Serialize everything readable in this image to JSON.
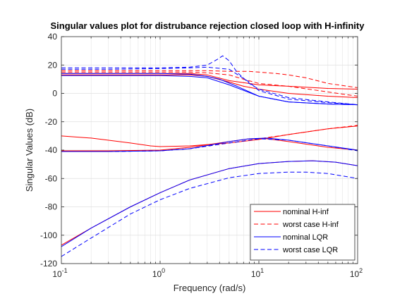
{
  "chart_data": {
    "type": "line",
    "title": "Singular values plot for distrubance rejection closed loop with H-infinity",
    "xlabel": "Frequency (rad/s)",
    "ylabel": "Singular Values (dB)",
    "xscale": "log",
    "xlim": [
      0.1,
      100
    ],
    "ylim": [
      -120,
      40
    ],
    "xticks": [
      {
        "value": 0.1,
        "base": "10",
        "exp": "-1"
      },
      {
        "value": 1,
        "base": "10",
        "exp": "0"
      },
      {
        "value": 10,
        "base": "10",
        "exp": "1"
      },
      {
        "value": 100,
        "base": "10",
        "exp": "2"
      }
    ],
    "yticks": [
      "-120",
      "-100",
      "-80",
      "-60",
      "-40",
      "-20",
      "0",
      "20",
      "40"
    ],
    "grid": true,
    "legend_position": "bottom-right",
    "colors": {
      "hinf": "#ff0000",
      "lqr": "#0000ff",
      "axis": "#262626",
      "grid": "#dfdfdf"
    },
    "series": [
      {
        "name": "nominal H-inf",
        "color": "#ff0000",
        "dash": false,
        "lines": [
          {
            "x": [
              0.1,
              0.3,
              1,
              2,
              3,
              5,
              10,
              20,
              50,
              100
            ],
            "y": [
              14,
              14,
              14,
              14,
              13,
              9,
              6,
              5,
              3.5,
              3
            ]
          },
          {
            "x": [
              0.1,
              0.3,
              1,
              2,
              3,
              5,
              7,
              10,
              20,
              50,
              100
            ],
            "y": [
              13,
              13,
              13,
              13,
              12,
              8,
              5,
              3,
              0,
              -2,
              -3
            ]
          },
          {
            "x": [
              0.1,
              0.2,
              0.5,
              0.8,
              1,
              2,
              5,
              10,
              20,
              50,
              100
            ],
            "y": [
              -30,
              -31.5,
              -35,
              -37,
              -37.5,
              -37,
              -35,
              -32.5,
              -29,
              -25,
              -23
            ]
          },
          {
            "x": [
              0.1,
              0.3,
              1,
              2,
              5,
              8,
              12,
              20,
              50,
              100
            ],
            "y": [
              -40.5,
              -40.5,
              -40,
              -38,
              -34,
              -32,
              -32,
              -34,
              -38,
              -40
            ]
          },
          {
            "x": [
              0.1,
              0.2,
              0.5,
              1,
              2,
              5,
              10,
              20,
              35,
              60,
              100
            ],
            "y": [
              -107,
              -95,
              -80,
              -70,
              -61,
              -53,
              -49.5,
              -48,
              -47.5,
              -48.5,
              -51
            ]
          }
        ]
      },
      {
        "name": "worst case H-inf",
        "color": "#ff0000",
        "dash": true,
        "lines": [
          {
            "x": [
              0.1,
              0.3,
              1,
              2,
              3,
              5,
              8,
              10,
              15,
              20,
              30,
              50,
              100
            ],
            "y": [
              16,
              16,
              16,
              16,
              16,
              15.5,
              15.5,
              15,
              14,
              13,
              11,
              7,
              4
            ]
          },
          {
            "x": [
              0.1,
              0.3,
              1,
              2,
              3,
              5,
              7,
              10,
              20,
              50,
              100
            ],
            "y": [
              15,
              15,
              15,
              15,
              14.5,
              13,
              10,
              7,
              5,
              1,
              -2
            ]
          },
          {
            "x": [
              0.1,
              0.3,
              1,
              2,
              5,
              10,
              20,
              50,
              100
            ],
            "y": [
              -41,
              -41,
              -40.5,
              -39,
              -35,
              -32,
              -29,
              -25,
              -22.5
            ]
          }
        ]
      },
      {
        "name": "nominal LQR",
        "color": "#0000ff",
        "dash": false,
        "lines": [
          {
            "x": [
              0.1,
              0.3,
              1,
              2,
              3,
              4,
              6,
              10,
              20,
              50,
              100
            ],
            "y": [
              14,
              14,
              14,
              13.5,
              12,
              10,
              5,
              -2,
              -6,
              -7.5,
              -8
            ]
          },
          {
            "x": [
              0.1,
              0.3,
              1,
              2,
              3,
              5,
              10,
              20,
              50,
              100
            ],
            "y": [
              12.5,
              12.5,
              12.5,
              12,
              11,
              6,
              -2,
              -6,
              -7.5,
              -8
            ]
          },
          {
            "x": [
              0.1,
              0.3,
              1,
              2,
              5,
              8,
              12,
              20,
              50,
              100
            ],
            "y": [
              -41,
              -41,
              -40.5,
              -39,
              -34,
              -32,
              -31.5,
              -33,
              -37,
              -40
            ]
          },
          {
            "x": [
              0.1,
              0.2,
              0.5,
              1,
              2,
              5,
              10,
              20,
              35,
              60,
              100
            ],
            "y": [
              -108,
              -95,
              -80,
              -70,
              -61,
              -53,
              -49.5,
              -48,
              -47.5,
              -48.5,
              -51
            ]
          }
        ]
      },
      {
        "name": "worst case LQR",
        "color": "#0000ff",
        "dash": true,
        "lines": [
          {
            "x": [
              0.1,
              0.3,
              1,
              2,
              3,
              3.8,
              4.3,
              5,
              6,
              8,
              10,
              20,
              50,
              100
            ],
            "y": [
              18,
              18,
              18,
              18.5,
              20,
              24,
              26.5,
              23,
              15,
              7,
              3,
              -3,
              -6,
              -8
            ]
          },
          {
            "x": [
              0.1,
              0.3,
              1,
              2,
              3,
              5,
              8,
              10,
              20,
              50,
              100
            ],
            "y": [
              17,
              17,
              17.5,
              18,
              18.5,
              17,
              8,
              2,
              -4,
              -6.5,
              -8
            ]
          },
          {
            "x": [
              0.1,
              0.3,
              1,
              2,
              5,
              10,
              20,
              50,
              100
            ],
            "y": [
              -41,
              -41,
              -40.5,
              -39,
              -35,
              -32,
              -33,
              -37,
              -40.5
            ]
          },
          {
            "x": [
              0.1,
              0.2,
              0.5,
              1,
              2,
              5,
              10,
              20,
              30,
              50,
              100
            ],
            "y": [
              -115,
              -102,
              -85,
              -75,
              -67,
              -59.5,
              -56.5,
              -55.5,
              -55.5,
              -56.5,
              -60
            ]
          }
        ]
      }
    ]
  }
}
